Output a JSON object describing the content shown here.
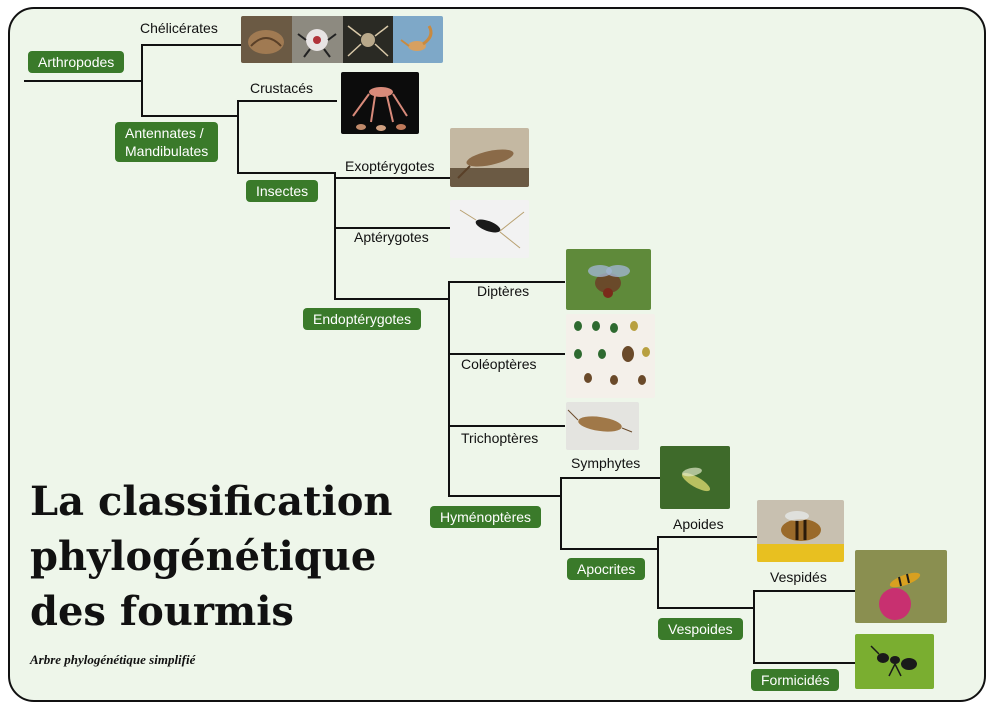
{
  "title": [
    "La classification",
    "phylogénétique",
    "des fourmis"
  ],
  "subtitle": "Arbre phylogénétique simplifié",
  "nodes": {
    "arthropodes": "Arthropodes",
    "antennates": [
      "Antennates /",
      "Mandibulates"
    ],
    "insectes": "Insectes",
    "endopterygotes": "Endoptérygotes",
    "hymenopteres": "Hyménoptères",
    "apocrites": "Apocrites",
    "vespoides": "Vespoides",
    "formicides": "Formicidés"
  },
  "leaves": {
    "chelicerates": "Chélicérates",
    "crustaces": "Crustacés",
    "exopterygotes": "Exoptérygotes",
    "apterygotes": "Aptérygotes",
    "dipteres": "Diptères",
    "coleopteres": "Coléoptères",
    "trichopteres": "Trichoptères",
    "symphytes": "Symphytes",
    "apoides": "Apoides",
    "vespides": "Vespidés"
  },
  "colors": {
    "node_green": "#3a7a2a",
    "background": "#eef6ea",
    "line": "#111111"
  }
}
